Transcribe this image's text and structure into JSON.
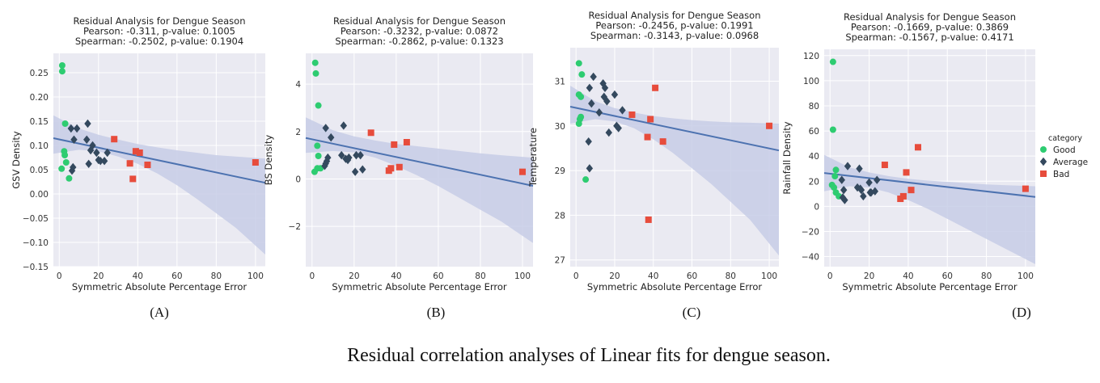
{
  "caption": "Residual correlation analyses of Linear fits for dengue season.",
  "colors": {
    "plot_bg": "#eaeaf2",
    "grid": "#ffffff",
    "good": "#2ecc71",
    "average": "#34495e",
    "bad": "#e74c3c",
    "fit_line": "#4c72b0",
    "band": "#c7cde6"
  },
  "legend": {
    "title": "category",
    "placement": "right",
    "items": [
      {
        "label": "Good",
        "marker": "circle",
        "color": "#2ecc71"
      },
      {
        "label": "Average",
        "marker": "diamond",
        "color": "#34495e"
      },
      {
        "label": "Bad",
        "marker": "square",
        "color": "#e74c3c"
      }
    ]
  },
  "chart_data": [
    {
      "type": "scatter",
      "panel_label": "(A)",
      "title": [
        "Residual Analysis for Dengue Season",
        "Pearson: -0.311, p-value: 0.1005",
        "Spearman: -0.2502, p-value: 0.1904"
      ],
      "xlabel": "Symmetric Absolute Percentage Error",
      "ylabel": "GSV Density",
      "xlim": [
        -3,
        105
      ],
      "ylim": [
        -0.15,
        0.29
      ],
      "xticks": [
        0,
        20,
        40,
        60,
        80,
        100
      ],
      "yticks": [
        -0.15,
        -0.1,
        -0.05,
        0.0,
        0.05,
        0.1,
        0.15,
        0.2,
        0.25
      ],
      "ytick_labels": [
        "−0.15",
        "−0.10",
        "−0.05",
        "0.00",
        "0.05",
        "0.10",
        "0.15",
        "0.20",
        "0.25"
      ],
      "fit": {
        "x": [
          -3,
          105
        ],
        "y": [
          0.115,
          0.023
        ]
      },
      "band": {
        "x": [
          -3,
          10,
          20,
          30,
          40,
          50,
          60,
          70,
          80,
          90,
          105
        ],
        "lower": [
          0.083,
          0.091,
          0.088,
          0.077,
          0.062,
          0.042,
          0.018,
          -0.01,
          -0.04,
          -0.07,
          -0.125
        ],
        "upper": [
          0.162,
          0.135,
          0.122,
          0.112,
          0.103,
          0.096,
          0.09,
          0.085,
          0.08,
          0.077,
          0.073
        ]
      },
      "series": [
        {
          "name": "Good",
          "marker": "circle",
          "x": [
            1.5,
            1.5,
            3,
            2.5,
            2.8,
            1.2,
            3.5,
            5
          ],
          "y": [
            0.265,
            0.253,
            0.145,
            0.088,
            0.08,
            0.052,
            0.065,
            0.032
          ]
        },
        {
          "name": "Average",
          "marker": "diamond",
          "x": [
            6,
            9,
            7.5,
            14,
            6.5,
            7,
            14.5,
            17,
            16,
            19,
            21,
            20,
            23,
            24.5,
            15
          ],
          "y": [
            0.135,
            0.135,
            0.112,
            0.112,
            0.048,
            0.055,
            0.145,
            0.1,
            0.09,
            0.085,
            0.068,
            0.07,
            0.068,
            0.085,
            0.062
          ]
        },
        {
          "name": "Bad",
          "marker": "square",
          "x": [
            28,
            36,
            39,
            41,
            45,
            37.5,
            100
          ],
          "y": [
            0.113,
            0.063,
            0.088,
            0.085,
            0.06,
            0.031,
            0.065
          ]
        }
      ]
    },
    {
      "type": "scatter",
      "panel_label": "(B)",
      "title": [
        "Residual Analysis for Dengue Season",
        "Pearson: -0.3232, p-value: 0.0872",
        "Spearman: -0.2862, p-value: 0.1323"
      ],
      "xlabel": "Symmetric Absolute Percentage Error",
      "ylabel": "BS Density",
      "xlim": [
        -3,
        105
      ],
      "ylim": [
        -3.7,
        5.3
      ],
      "xticks": [
        0,
        20,
        40,
        60,
        80,
        100
      ],
      "yticks": [
        -2,
        0,
        2,
        4
      ],
      "ytick_labels": [
        "−2",
        "0",
        "2",
        "4"
      ],
      "fit": {
        "x": [
          -3,
          105
        ],
        "y": [
          1.73,
          -0.29
        ]
      },
      "band": {
        "x": [
          -3,
          10,
          20,
          30,
          40,
          50,
          60,
          70,
          80,
          90,
          105
        ],
        "lower": [
          1.1,
          1.18,
          1.12,
          0.9,
          0.55,
          0.15,
          -0.3,
          -0.8,
          -1.3,
          -1.8,
          -2.7
        ],
        "upper": [
          2.6,
          2.05,
          1.8,
          1.62,
          1.48,
          1.38,
          1.28,
          1.18,
          1.08,
          1.0,
          0.9
        ]
      },
      "series": [
        {
          "name": "Good",
          "marker": "circle",
          "x": [
            1.5,
            1.8,
            3,
            2.5,
            3,
            1.2,
            2.5,
            4
          ],
          "y": [
            4.9,
            4.45,
            3.1,
            1.4,
            0.97,
            0.3,
            0.45,
            0.45
          ]
        },
        {
          "name": "Average",
          "marker": "diamond",
          "x": [
            6.5,
            9,
            15,
            14,
            16,
            17,
            21,
            23,
            24,
            20.5,
            7.5,
            7,
            6.5,
            6,
            17.5
          ],
          "y": [
            2.15,
            1.75,
            2.25,
            1.0,
            0.85,
            0.8,
            1.0,
            1.0,
            0.4,
            0.3,
            0.9,
            0.75,
            0.65,
            0.55,
            0.9
          ]
        },
        {
          "name": "Bad",
          "marker": "square",
          "x": [
            28,
            39,
            45,
            41.5,
            37.5,
            36.5,
            100
          ],
          "y": [
            1.95,
            1.45,
            1.55,
            0.5,
            0.45,
            0.35,
            0.3
          ]
        }
      ]
    },
    {
      "type": "scatter",
      "panel_label": "(C)",
      "title": [
        "Residual Analysis for Dengue Season",
        "Pearson: -0.2456, p-value: 0.1991",
        "Spearman: -0.3143, p-value: 0.0968"
      ],
      "xlabel": "Symmetric Absolute Percentage Error",
      "ylabel": "Temperature",
      "xlim": [
        -3,
        105
      ],
      "ylim": [
        26.85,
        31.75
      ],
      "xticks": [
        0,
        20,
        40,
        60,
        80,
        100
      ],
      "yticks": [
        27,
        28,
        29,
        30,
        31
      ],
      "ytick_labels": [
        "27",
        "28",
        "29",
        "30",
        "31"
      ],
      "fit": {
        "x": [
          -3,
          105
        ],
        "y": [
          30.43,
          29.45
        ]
      },
      "band": {
        "x": [
          -3,
          10,
          20,
          30,
          40,
          50,
          60,
          70,
          80,
          90,
          105
        ],
        "lower": [
          30.05,
          30.15,
          30.1,
          29.95,
          29.7,
          29.4,
          29.05,
          28.7,
          28.3,
          27.9,
          27.1
        ],
        "upper": [
          30.9,
          30.55,
          30.4,
          30.3,
          30.22,
          30.17,
          30.13,
          30.1,
          30.08,
          30.07,
          30.05
        ]
      },
      "series": [
        {
          "name": "Good",
          "marker": "circle",
          "x": [
            1.5,
            3,
            1.5,
            2.5,
            2,
            2.5,
            1.5,
            5
          ],
          "y": [
            31.4,
            31.15,
            30.7,
            30.65,
            30.15,
            30.2,
            30.05,
            28.8
          ]
        },
        {
          "name": "Average",
          "marker": "diamond",
          "x": [
            9,
            7,
            14,
            15,
            14.5,
            16,
            8,
            20,
            24,
            21,
            22,
            12,
            17,
            6.5,
            7
          ],
          "y": [
            31.1,
            30.85,
            30.95,
            30.85,
            30.65,
            30.55,
            30.5,
            30.7,
            30.35,
            30.0,
            29.95,
            30.3,
            29.85,
            29.65,
            29.05
          ]
        },
        {
          "name": "Bad",
          "marker": "square",
          "x": [
            41,
            29,
            38.5,
            37,
            45,
            37.5,
            100
          ],
          "y": [
            30.85,
            30.25,
            30.15,
            29.75,
            29.65,
            27.9,
            30.0
          ]
        }
      ]
    },
    {
      "type": "scatter",
      "panel_label": "(D)",
      "title": [
        "Residual Analysis for Dengue Season",
        "Pearson: -0.1669, p-value: 0.3869",
        "Spearman: -0.1567, p-value: 0.4171"
      ],
      "xlabel": "Symmetric Absolute Percentage Error",
      "ylabel": "Rainfall Density",
      "xlim": [
        -3,
        105
      ],
      "ylim": [
        -48,
        125
      ],
      "xticks": [
        0,
        20,
        40,
        60,
        80,
        100
      ],
      "yticks": [
        -40,
        -20,
        0,
        20,
        40,
        60,
        80,
        100,
        120
      ],
      "ytick_labels": [
        "−40",
        "−20",
        "0",
        "20",
        "40",
        "60",
        "80",
        "100",
        "120"
      ],
      "fit": {
        "x": [
          -3,
          105
        ],
        "y": [
          26.5,
          7.5
        ]
      },
      "band": {
        "x": [
          -3,
          10,
          20,
          30,
          40,
          50,
          60,
          70,
          80,
          90,
          105
        ],
        "lower": [
          12,
          16,
          15,
          11,
          5,
          -2,
          -10,
          -18,
          -26,
          -34,
          -46
        ],
        "upper": [
          41,
          31,
          27,
          24,
          22,
          20.5,
          19.5,
          18.5,
          17.5,
          16.8,
          16
        ]
      },
      "series": [
        {
          "name": "Good",
          "marker": "circle",
          "x": [
            1.5,
            1.5,
            3,
            2.5,
            1,
            2,
            3,
            4.5
          ],
          "y": [
            115,
            61,
            29,
            24,
            17,
            15,
            11,
            8
          ]
        },
        {
          "name": "Average",
          "marker": "diamond",
          "x": [
            9,
            15,
            6,
            14,
            16,
            20,
            24,
            21,
            23,
            7,
            17,
            20.5,
            7.5,
            15.5,
            6.5
          ],
          "y": [
            32,
            30,
            21,
            15,
            13,
            19,
            21,
            11,
            12,
            13,
            8,
            11,
            5,
            14,
            7
          ]
        },
        {
          "name": "Bad",
          "marker": "square",
          "x": [
            28,
            45,
            39,
            41.5,
            37.5,
            36,
            100
          ],
          "y": [
            33,
            47,
            27,
            13,
            8,
            6,
            14
          ]
        }
      ]
    }
  ]
}
